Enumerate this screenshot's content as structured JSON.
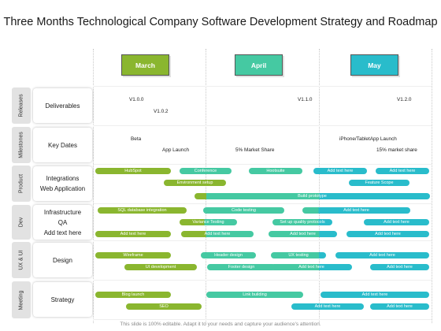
{
  "title": "Three Months Technological Company Software Development Strategy and Roadmap",
  "footer": "This slide is 100% editable. Adapt it to your needs and capture your audience's attention.",
  "colors": {
    "green": "#8ab62f",
    "teal": "#45c9a2",
    "cyan": "#29bccb"
  },
  "months": [
    {
      "label": "March",
      "color": "#8ab62f"
    },
    {
      "label": "April",
      "color": "#45c9a2"
    },
    {
      "label": "May",
      "color": "#29bccb"
    }
  ],
  "rows": [
    {
      "side": "Releases",
      "category": "Deliverables"
    },
    {
      "side": "Milestones",
      "category": "Key Dates"
    },
    {
      "side": "Product",
      "category": "Integrations\nWeb Application"
    },
    {
      "side": "Dev",
      "category": "Infrastructure\nQA\nAdd text here"
    },
    {
      "side": "UX & UI",
      "category": "Design"
    },
    {
      "side": "Meeting",
      "category": "Strategy"
    }
  ],
  "texts": {
    "v100": "V1.0.0",
    "v102": "V1.0.2",
    "v110": "V1.1.0",
    "v120": "V1.2.0",
    "beta": "Beta",
    "app_launch": "App Launch",
    "market5": "5% Market Share",
    "iphone": "iPhone/TabletApp Launch",
    "market15": "15% market share"
  },
  "bars": {
    "hubspot": "HubSpot",
    "conference": "Conference",
    "hootsuite": "Hootsuite",
    "p_add1": "Add text here",
    "p_add2": "Add text here",
    "env_setup": "Environment setup",
    "feature_scope": "Feature Scope",
    "build_proto": "Build prototype",
    "sql": "SQL database integration",
    "code_testing": "Code testing",
    "d_add1": "Add text here",
    "variance": "Variance Testing",
    "quality": "Set up quality protocols",
    "d_add2": "Add text here",
    "d_add3": "Add text here",
    "d_add4": "Add text here",
    "d_add5": "Add text here",
    "d_add6": "Add text here",
    "wireframe": "Wireframe",
    "header": "Header design",
    "ux_testing": "UX testing",
    "u_add1": "Add text here",
    "ui_dev": "UI development",
    "footer_design": "Footer design",
    "u_add2": "Add text here",
    "u_add3": "Add text here",
    "blog": "Blog launch",
    "link_building": "Link building",
    "s_add1": "Add text here",
    "seo": "SEO",
    "s_add2": "Add text here",
    "s_add3": "Add text here"
  }
}
